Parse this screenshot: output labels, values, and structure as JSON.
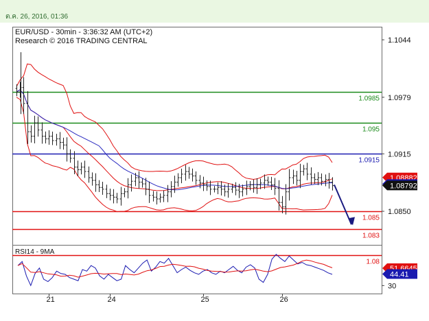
{
  "header": {
    "date_time": "ต.ค. 26, 2016, 01:36"
  },
  "chart_data": {
    "type": "candlestick",
    "title": "EUR/USD - 30min - 3:36:32 AM (UTC+2)",
    "subtitle": "Research © 2016 TRADING CENTRAL",
    "price_axis": {
      "ticks": [
        "1.1044",
        "1.0979",
        "1.0915",
        "1.0850"
      ],
      "ylim": [
        1.0812,
        1.1058
      ]
    },
    "x_ticks": [
      "21",
      "24",
      "25",
      "26"
    ],
    "levels": [
      {
        "label": "1.0985",
        "value": 1.0985,
        "color": "#1a8a1a"
      },
      {
        "label": "1.095",
        "value": 1.095,
        "color": "#1a8a1a"
      },
      {
        "label": "1.0915",
        "value": 1.0915,
        "color": "#1a1ab0"
      },
      {
        "label": "1.085",
        "value": 1.085,
        "color": "#e01010"
      },
      {
        "label": "1.083",
        "value": 1.083,
        "color": "#e01010"
      },
      {
        "label": "1.08",
        "value": 1.08,
        "color": "#e01010"
      }
    ],
    "price_badges": [
      {
        "label": "1.08882",
        "color": "#e01010"
      },
      {
        "label": "1.08808",
        "color": "#1a1ab0"
      },
      {
        "label": "1.08792",
        "color": "#111111"
      }
    ],
    "close_series": [
      1.0985,
      1.099,
      1.0972,
      1.094,
      1.0935,
      1.095,
      1.0942,
      1.0935,
      1.0932,
      1.0935,
      1.093,
      1.0932,
      1.0928,
      1.0925,
      1.0915,
      1.091,
      1.09,
      1.0897,
      1.09,
      1.0895,
      1.0888,
      1.0885,
      1.088,
      1.0877,
      1.0875,
      1.087,
      1.0868,
      1.0866,
      1.0864,
      1.087,
      1.0872,
      1.088,
      1.0884,
      1.0888,
      1.0883,
      1.0881,
      1.0875,
      1.0868,
      1.0866,
      1.0864,
      1.0866,
      1.0868,
      1.0872,
      1.0878,
      1.0883,
      1.0888,
      1.0892,
      1.0895,
      1.0892,
      1.089,
      1.0885,
      1.0882,
      1.088,
      1.0878,
      1.0875,
      1.0875,
      1.0877,
      1.0875,
      1.0872,
      1.0875,
      1.0877,
      1.0874,
      1.0872,
      1.0875,
      1.0878,
      1.088,
      1.0877,
      1.088,
      1.0882,
      1.0885,
      1.0883,
      1.088,
      1.0876,
      1.086,
      1.0855,
      1.0872,
      1.0888,
      1.089,
      1.0885,
      1.0895,
      1.0898,
      1.0892,
      1.0888,
      1.0886,
      1.0888,
      1.0884,
      1.0886,
      1.0883,
      1.0879
    ],
    "forecast": {
      "from_price": 1.088,
      "to_price": 1.0835
    },
    "rsi": {
      "label": "RSI14 - 9MA",
      "ylim": [
        20,
        80
      ],
      "tick": "30",
      "badges": [
        {
          "label": "51.6645",
          "color": "#e01010"
        },
        {
          "label": "44.41",
          "color": "#1a1ab0"
        }
      ],
      "values": [
        55,
        60,
        42,
        30,
        45,
        52,
        38,
        35,
        40,
        48,
        45,
        44,
        40,
        38,
        36,
        50,
        48,
        55,
        52,
        42,
        38,
        44,
        40,
        36,
        38,
        55,
        50,
        46,
        52,
        58,
        62,
        48,
        53,
        60,
        58,
        64,
        55,
        46,
        50,
        53,
        49,
        46,
        44,
        48,
        50,
        46,
        44,
        48,
        46,
        50,
        54,
        49,
        46,
        53,
        56,
        52,
        38,
        34,
        44,
        63,
        69,
        64,
        60,
        67,
        62,
        57,
        59,
        56,
        55,
        53,
        51,
        49,
        46,
        44
      ]
    }
  }
}
